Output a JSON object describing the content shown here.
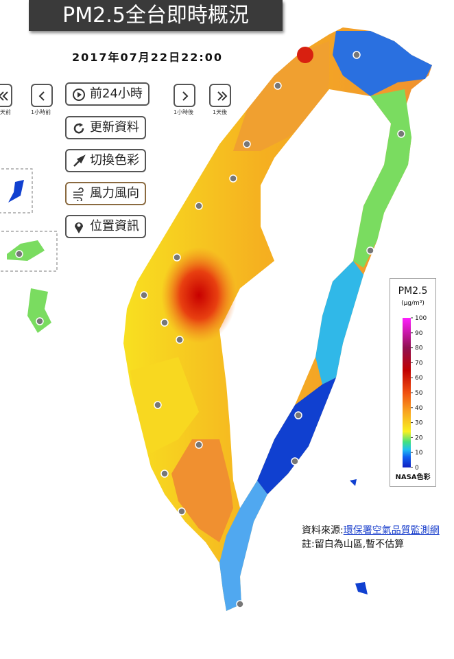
{
  "header": {
    "title": "PM2.5全台即時概況",
    "timestamp": "2017年07月22日22:00"
  },
  "controls": {
    "nav_labels": [
      "天前",
      "1小時前",
      "1小時後",
      "1天後"
    ],
    "buttons": [
      "前24小時",
      "更新資料",
      "切換色彩",
      "風力風向",
      "位置資訊"
    ]
  },
  "legend": {
    "title": "PM2.5",
    "unit": "(μg/m³)",
    "ticks": [
      100,
      90,
      80,
      70,
      60,
      50,
      40,
      30,
      20,
      10,
      0
    ],
    "scheme": "NASA色彩"
  },
  "footer": {
    "source_label": "資料來源:",
    "source_link": "環保署空氣品質監測網",
    "note": "註:留白為山區,暫不估算"
  }
}
